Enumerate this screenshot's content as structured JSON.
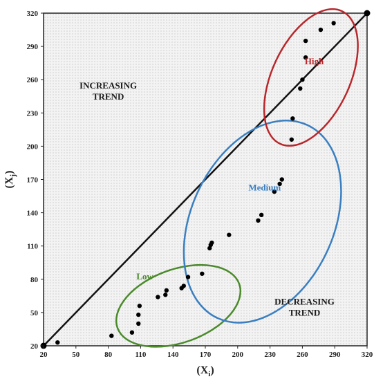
{
  "chart_data": {
    "type": "scatter",
    "xlabel": "(X",
    "xlabel_sub": "i",
    "ylabel": "(X",
    "ylabel_sub": "j",
    "xlim": [
      20,
      320
    ],
    "ylim": [
      20,
      320
    ],
    "x_ticks": [
      20,
      50,
      80,
      110,
      140,
      170,
      200,
      230,
      260,
      290,
      320
    ],
    "x_tick_labels": [
      "20",
      "50",
      "80",
      "110",
      "140",
      "170",
      "200",
      "230",
      "260",
      "290",
      "320"
    ],
    "y_ticks": [
      20,
      50,
      80,
      110,
      140,
      170,
      200,
      230,
      260,
      290,
      320
    ],
    "y_tick_labels": [
      "20",
      "50",
      "80",
      "110",
      "140",
      "170",
      "200",
      "230",
      "260",
      "290",
      "320"
    ],
    "grid": false,
    "diagonal": {
      "from": [
        20,
        20
      ],
      "to": [
        320,
        320
      ]
    },
    "points": [
      {
        "x": 33,
        "y": 23
      },
      {
        "x": 83,
        "y": 29
      },
      {
        "x": 102,
        "y": 32
      },
      {
        "x": 108,
        "y": 40
      },
      {
        "x": 108,
        "y": 48
      },
      {
        "x": 109,
        "y": 56
      },
      {
        "x": 126,
        "y": 64
      },
      {
        "x": 133,
        "y": 66
      },
      {
        "x": 134,
        "y": 70
      },
      {
        "x": 148,
        "y": 72
      },
      {
        "x": 150,
        "y": 74
      },
      {
        "x": 154,
        "y": 82
      },
      {
        "x": 167,
        "y": 85
      },
      {
        "x": 174,
        "y": 108
      },
      {
        "x": 175,
        "y": 111
      },
      {
        "x": 176,
        "y": 113
      },
      {
        "x": 192,
        "y": 120
      },
      {
        "x": 219,
        "y": 133
      },
      {
        "x": 222,
        "y": 138
      },
      {
        "x": 234,
        "y": 159
      },
      {
        "x": 239,
        "y": 166
      },
      {
        "x": 241,
        "y": 170
      },
      {
        "x": 250,
        "y": 206
      },
      {
        "x": 251,
        "y": 225
      },
      {
        "x": 258,
        "y": 252
      },
      {
        "x": 260,
        "y": 260
      },
      {
        "x": 263,
        "y": 280
      },
      {
        "x": 263,
        "y": 295
      },
      {
        "x": 277,
        "y": 305
      },
      {
        "x": 289,
        "y": 311
      }
    ],
    "endpoints": [
      {
        "x": 20,
        "y": 20
      },
      {
        "x": 320,
        "y": 320
      }
    ],
    "clusters": [
      {
        "label": "Low",
        "color": "#4a8a2a",
        "center": [
          145,
          56
        ],
        "radius": [
          60,
          33
        ],
        "rotation": -20
      },
      {
        "label": "Medium",
        "color": "#3a7fc1",
        "center": [
          223,
          132
        ],
        "radius": [
          66,
          96
        ],
        "rotation": 25
      },
      {
        "label": "High",
        "color": "#b8272b",
        "center": [
          268,
          262
        ],
        "radius": [
          36,
          66
        ],
        "rotation": 25
      }
    ],
    "annotations": [
      {
        "text": "INCREASING",
        "x": 80,
        "y": 252,
        "color": "#1a1a1a"
      },
      {
        "text": "TREND",
        "x": 80,
        "y": 242,
        "color": "#1a1a1a"
      },
      {
        "text": "DECREASING",
        "x": 262,
        "y": 57,
        "color": "#1a1a1a"
      },
      {
        "text": "TREND",
        "x": 262,
        "y": 47,
        "color": "#1a1a1a"
      },
      {
        "text": "Low",
        "x": 114,
        "y": 80,
        "color": "#4a8a2a"
      },
      {
        "text": "Medium",
        "x": 225,
        "y": 160,
        "color": "#3a7fc1"
      },
      {
        "text": "High",
        "x": 271,
        "y": 274,
        "color": "#b8272b"
      }
    ]
  }
}
